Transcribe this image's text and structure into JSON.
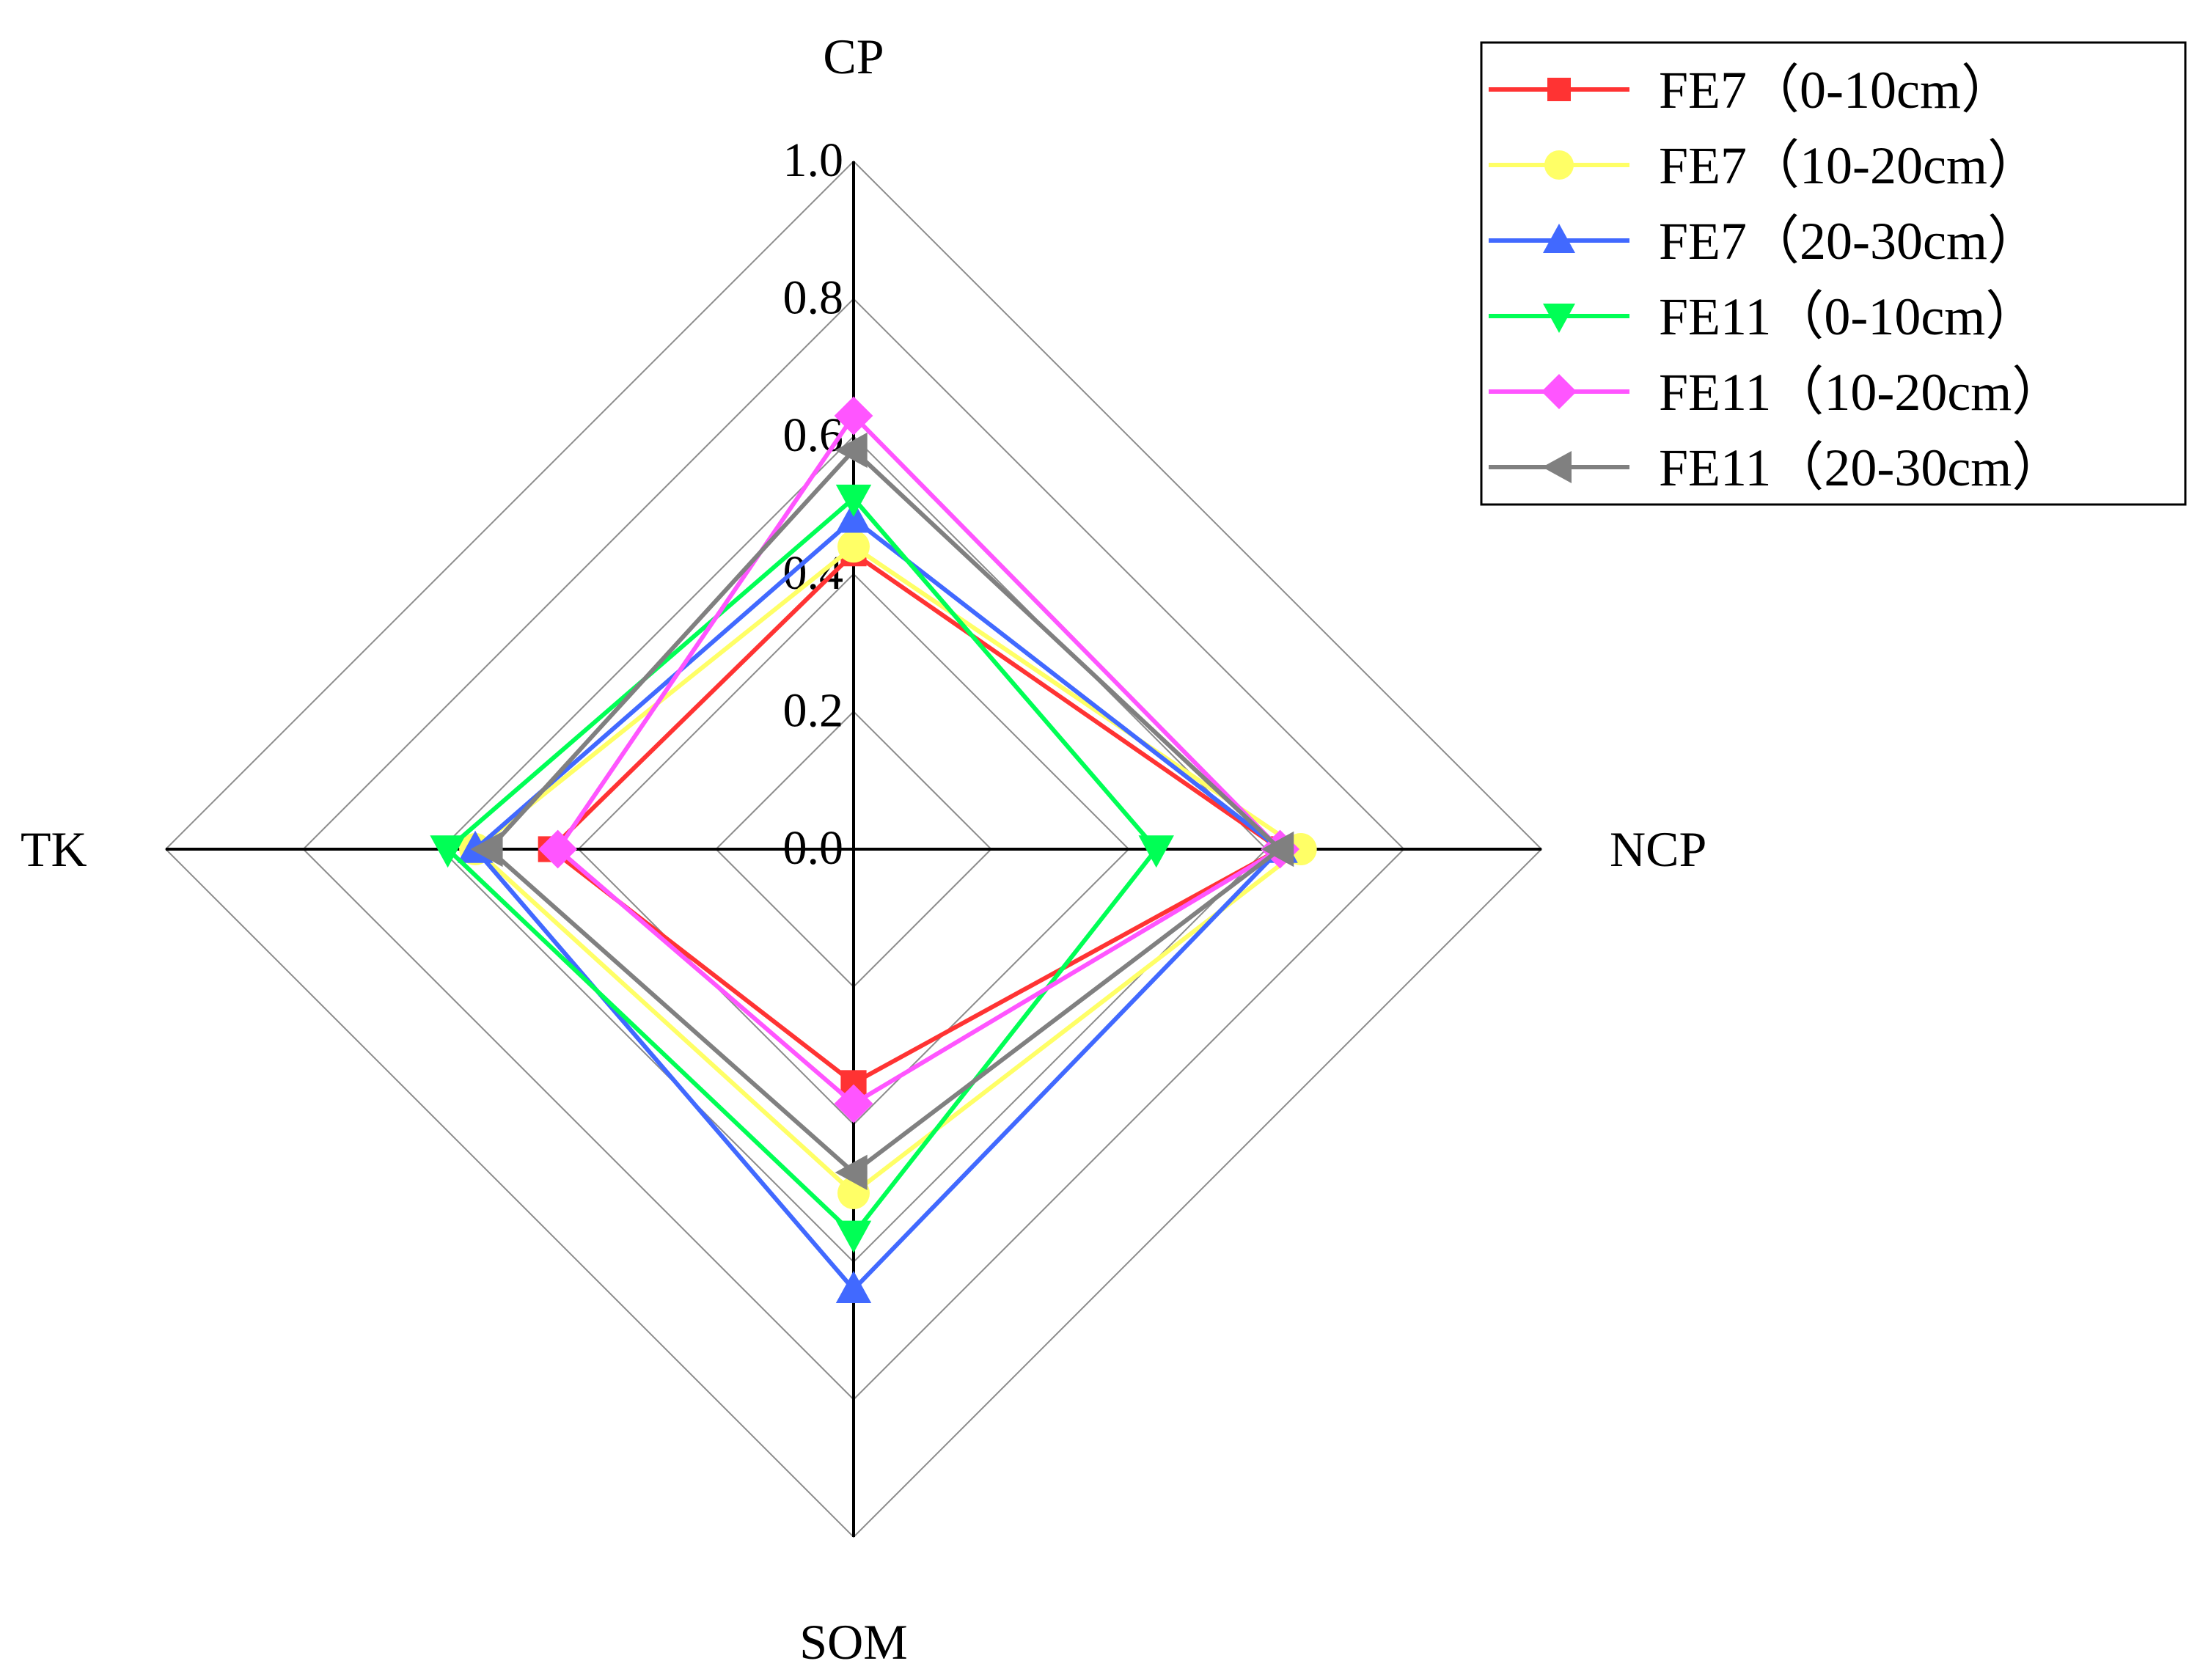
{
  "chart_data": {
    "type": "radar",
    "axes": [
      "CP",
      "NCP",
      "SOM",
      "TK"
    ],
    "range": [
      0,
      1.0
    ],
    "tick_labels": [
      "0.0",
      "0.2",
      "0.4",
      "0.6",
      "0.8",
      "1.0"
    ],
    "grid": true,
    "legend_position": "top-right",
    "series": [
      {
        "name": "FE7（0-10cm）",
        "color": "#ff3333",
        "marker": "square",
        "values": [
          0.43,
          0.62,
          0.34,
          0.44
        ]
      },
      {
        "name": "FE7（10-20cm）",
        "color": "#ffff66",
        "marker": "circle",
        "values": [
          0.44,
          0.65,
          0.5,
          0.55
        ]
      },
      {
        "name": "FE7（20-30cm）",
        "color": "#4169ff",
        "marker": "triangle-up",
        "values": [
          0.48,
          0.62,
          0.64,
          0.55
        ]
      },
      {
        "name": "FE11（0-10cm）",
        "color": "#00ff55",
        "marker": "triangle-down",
        "values": [
          0.51,
          0.44,
          0.56,
          0.59
        ]
      },
      {
        "name": "FE11（10-20cm）",
        "color": "#ff55ff",
        "marker": "diamond",
        "values": [
          0.63,
          0.62,
          0.37,
          0.43
        ]
      },
      {
        "name": "FE11（20-30cm）",
        "color": "#808080",
        "marker": "triangle-left",
        "values": [
          0.58,
          0.62,
          0.47,
          0.53
        ]
      }
    ]
  }
}
